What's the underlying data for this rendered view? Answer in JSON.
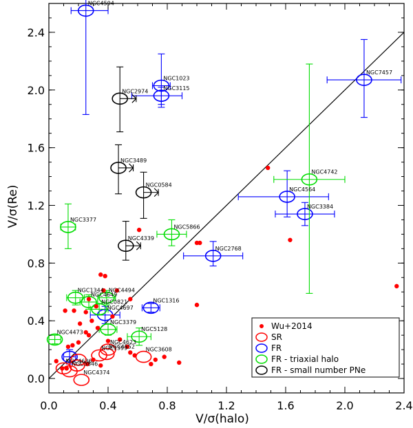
{
  "chart_data": {
    "type": "scatter",
    "xlabel": "V/σ(halo)",
    "ylabel": "V/σ(Re)",
    "xlim": [
      0.0,
      2.4
    ],
    "ylim": [
      -0.1,
      2.6
    ],
    "xticks": [
      "0.0",
      "0.4",
      "0.8",
      "1.2",
      "1.6",
      "2.0",
      "2.4"
    ],
    "yticks": [
      "0.0",
      "0.4",
      "0.8",
      "1.2",
      "1.6",
      "2.0",
      "2.4"
    ],
    "x_tick_values": [
      0.0,
      0.4,
      0.8,
      1.2,
      1.6,
      2.0,
      2.4
    ],
    "y_tick_values": [
      0.0,
      0.4,
      0.8,
      1.2,
      1.6,
      2.0,
      2.4
    ],
    "reference_line": {
      "from": [
        0.0,
        0.0
      ],
      "to": [
        2.4,
        2.4
      ]
    },
    "legend_position": "lower-right",
    "legend": [
      {
        "label": "Wu+2014",
        "marker": "dot",
        "color": "#ff0000"
      },
      {
        "label": "SR",
        "marker": "circle",
        "color": "#ff0000"
      },
      {
        "label": "FR",
        "marker": "circle",
        "color": "#0000ff"
      },
      {
        "label": "FR - triaxial halo",
        "marker": "circle",
        "color": "#00dd00"
      },
      {
        "label": "FR - small number PNe",
        "marker": "circle",
        "color": "#000000"
      }
    ],
    "colors": {
      "SR": "#ff0000",
      "FR": "#0000ff",
      "FR_triaxial": "#00dd00",
      "FR_small": "#000000",
      "Wu": "#ff0000"
    },
    "series": [
      {
        "name": "FR",
        "color": "#0000ff",
        "points": [
          {
            "label": "NGC4594",
            "x": 0.25,
            "y": 2.55,
            "xerr": [
              0.1,
              0.15
            ],
            "yerr": [
              0.72,
              0.45
            ]
          },
          {
            "label": "NGC1023",
            "x": 0.76,
            "y": 2.03,
            "xerr": [
              0.06,
              0.06
            ],
            "yerr": [
              0.15,
              0.22
            ]
          },
          {
            "label": "NGC3115",
            "x": 0.76,
            "y": 1.96,
            "xerr": [
              0.2,
              0.14
            ],
            "yerr": [
              0.06,
              0.06
            ]
          },
          {
            "label": "NGC7457",
            "x": 2.13,
            "y": 2.07,
            "xerr": [
              0.25,
              0.25
            ],
            "yerr": [
              0.26,
              0.28
            ]
          },
          {
            "label": "NGC4564",
            "x": 1.61,
            "y": 1.26,
            "xerr": [
              0.33,
              0.28
            ],
            "yerr": [
              0.14,
              0.18
            ]
          },
          {
            "label": "NGC3384",
            "x": 1.73,
            "y": 1.14,
            "xerr": [
              0.2,
              0.2
            ],
            "yerr": [
              0.08,
              0.08
            ]
          },
          {
            "label": "NGC2768",
            "x": 1.11,
            "y": 0.85,
            "xerr": [
              0.2,
              0.2
            ],
            "yerr": [
              0.07,
              0.1
            ]
          },
          {
            "label": "NGC1316",
            "x": 0.69,
            "y": 0.49,
            "xerr": [
              0.06,
              0.06
            ],
            "yerr": [
              0.03,
              0.03
            ]
          },
          {
            "label": "NGC4697",
            "x": 0.38,
            "y": 0.44,
            "xerr": [
              0.1,
              0.1
            ],
            "yerr": [
              0.06,
              0.06
            ]
          },
          {
            "label": "",
            "x": 0.14,
            "y": 0.15,
            "xerr": [
              0.04,
              0.04
            ],
            "yerr": [
              0.05,
              0.05
            ]
          }
        ]
      },
      {
        "name": "FR - triaxial halo",
        "color": "#00dd00",
        "points": [
          {
            "label": "NGC4742",
            "x": 1.76,
            "y": 1.38,
            "xerr": [
              0.24,
              0.24
            ],
            "yerr": [
              0.79,
              0.8
            ]
          },
          {
            "label": "NGC3377",
            "x": 0.13,
            "y": 1.05,
            "xerr": [
              0.05,
              0.05
            ],
            "yerr": [
              0.15,
              0.16
            ]
          },
          {
            "label": "NGC5866",
            "x": 0.83,
            "y": 1.0,
            "xerr": [
              0.1,
              0.1
            ],
            "yerr": [
              0.08,
              0.1
            ]
          },
          {
            "label": "NGC1344",
            "x": 0.18,
            "y": 0.56,
            "xerr": [
              0.06,
              0.06
            ],
            "yerr": [
              0.05,
              0.05
            ]
          },
          {
            "label": "NGC4494",
            "x": 0.39,
            "y": 0.56,
            "xerr": [
              0.06,
              0.06
            ],
            "yerr": [
              0.05,
              0.05
            ]
          },
          {
            "label": "NGC4649",
            "x": 0.27,
            "y": 0.53,
            "xerr": [
              0.06,
              0.06
            ],
            "yerr": [
              0.05,
              0.05
            ]
          },
          {
            "label": "NGC0821",
            "x": 0.34,
            "y": 0.48,
            "xerr": [
              0.06,
              0.06
            ],
            "yerr": [
              0.04,
              0.04
            ]
          },
          {
            "label": "NGC3379",
            "x": 0.4,
            "y": 0.34,
            "xerr": [
              0.06,
              0.06
            ],
            "yerr": [
              0.04,
              0.04
            ]
          },
          {
            "label": "NGC5128",
            "x": 0.61,
            "y": 0.29,
            "xerr": [
              0.08,
              0.08
            ],
            "yerr": [
              0.06,
              0.06
            ]
          },
          {
            "label": "NGC4473",
            "x": 0.04,
            "y": 0.27,
            "xerr": [
              0.04,
              0.04
            ],
            "yerr": [
              0.03,
              0.03
            ]
          }
        ]
      },
      {
        "name": "FR - small number PNe",
        "color": "#000000",
        "points": [
          {
            "label": "NGC2974",
            "x": 0.48,
            "y": 1.94,
            "xerr": [
              0.0,
              0.11
            ],
            "yerr": [
              0.23,
              0.22
            ]
          },
          {
            "label": "NGC3489",
            "x": 0.47,
            "y": 1.46,
            "xerr": [
              0.0,
              0.1
            ],
            "yerr": [
              0.18,
              0.16
            ]
          },
          {
            "label": "NGC0584",
            "x": 0.64,
            "y": 1.29,
            "xerr": [
              0.0,
              0.1
            ],
            "yerr": [
              0.18,
              0.14
            ]
          },
          {
            "label": "NGC4339",
            "x": 0.52,
            "y": 0.92,
            "xerr": [
              0.0,
              0.1
            ],
            "yerr": [
              0.1,
              0.17
            ]
          }
        ]
      },
      {
        "name": "SR",
        "color": "#ff0000",
        "points": [
          {
            "label": "NGC5846",
            "x": 0.14,
            "y": 0.05,
            "xerr": [
              0.0,
              0.0
            ],
            "yerr": [
              0.0,
              0.0
            ]
          },
          {
            "label": "NGC4374",
            "x": 0.22,
            "y": -0.01,
            "xerr": [
              0.0,
              0.0
            ],
            "yerr": [
              0.0,
              0.0
            ]
          },
          {
            "label": "NGC4636",
            "x": 0.1,
            "y": 0.07,
            "xerr": [
              0.0,
              0.0
            ],
            "yerr": [
              0.0,
              0.0
            ]
          },
          {
            "label": "NGC4552",
            "x": 0.39,
            "y": 0.17,
            "xerr": [
              0.0,
              0.0
            ],
            "yerr": [
              0.0,
              0.0
            ]
          },
          {
            "label": "NGC1399",
            "x": 0.34,
            "y": 0.16,
            "xerr": [
              0.0,
              0.0
            ],
            "yerr": [
              0.0,
              0.0
            ]
          },
          {
            "label": "NGC4623",
            "x": 0.4,
            "y": 0.2,
            "xerr": [
              0.0,
              0.0
            ],
            "yerr": [
              0.0,
              0.0
            ]
          },
          {
            "label": "NGC3608",
            "x": 0.64,
            "y": 0.15,
            "xerr": [
              0.0,
              0.0
            ],
            "yerr": [
              0.0,
              0.0
            ]
          },
          {
            "label": "",
            "x": 0.2,
            "y": 0.13,
            "xerr": [
              0.0,
              0.0
            ],
            "yerr": [
              0.0,
              0.0
            ]
          },
          {
            "label": "",
            "x": 0.19,
            "y": 0.09,
            "xerr": [
              0.0,
              0.0
            ],
            "yerr": [
              0.0,
              0.0
            ]
          }
        ]
      },
      {
        "name": "Wu+2014",
        "color": "#ff0000",
        "points": [
          {
            "x": 1.48,
            "y": 1.46
          },
          {
            "x": 1.63,
            "y": 0.96
          },
          {
            "x": 2.35,
            "y": 0.64
          },
          {
            "x": 1.0,
            "y": 0.94
          },
          {
            "x": 1.02,
            "y": 0.94
          },
          {
            "x": 1.0,
            "y": 0.51
          },
          {
            "x": 0.61,
            "y": 1.03
          },
          {
            "x": 0.35,
            "y": 0.72
          },
          {
            "x": 0.38,
            "y": 0.71
          },
          {
            "x": 0.37,
            "y": 0.61
          },
          {
            "x": 0.46,
            "y": 0.61
          },
          {
            "x": 0.55,
            "y": 0.55
          },
          {
            "x": 0.27,
            "y": 0.55
          },
          {
            "x": 0.32,
            "y": 0.5
          },
          {
            "x": 0.25,
            "y": 0.46
          },
          {
            "x": 0.43,
            "y": 0.43
          },
          {
            "x": 0.29,
            "y": 0.4
          },
          {
            "x": 0.21,
            "y": 0.38
          },
          {
            "x": 0.33,
            "y": 0.35
          },
          {
            "x": 0.25,
            "y": 0.32
          },
          {
            "x": 0.27,
            "y": 0.3
          },
          {
            "x": 0.2,
            "y": 0.25
          },
          {
            "x": 0.16,
            "y": 0.23
          },
          {
            "x": 0.13,
            "y": 0.22
          },
          {
            "x": 0.4,
            "y": 0.26
          },
          {
            "x": 0.48,
            "y": 0.27
          },
          {
            "x": 0.53,
            "y": 0.22
          },
          {
            "x": 0.55,
            "y": 0.18
          },
          {
            "x": 0.58,
            "y": 0.16
          },
          {
            "x": 0.3,
            "y": 0.13
          },
          {
            "x": 0.26,
            "y": 0.1
          },
          {
            "x": 0.35,
            "y": 0.09
          },
          {
            "x": 0.09,
            "y": 0.07
          },
          {
            "x": 0.12,
            "y": 0.07
          },
          {
            "x": 0.05,
            "y": 0.12
          },
          {
            "x": 0.72,
            "y": 0.13
          },
          {
            "x": 0.78,
            "y": 0.15
          },
          {
            "x": 0.88,
            "y": 0.11
          },
          {
            "x": 0.69,
            "y": 0.1
          },
          {
            "x": 0.17,
            "y": 0.47
          },
          {
            "x": 0.11,
            "y": 0.47
          }
        ]
      }
    ]
  }
}
